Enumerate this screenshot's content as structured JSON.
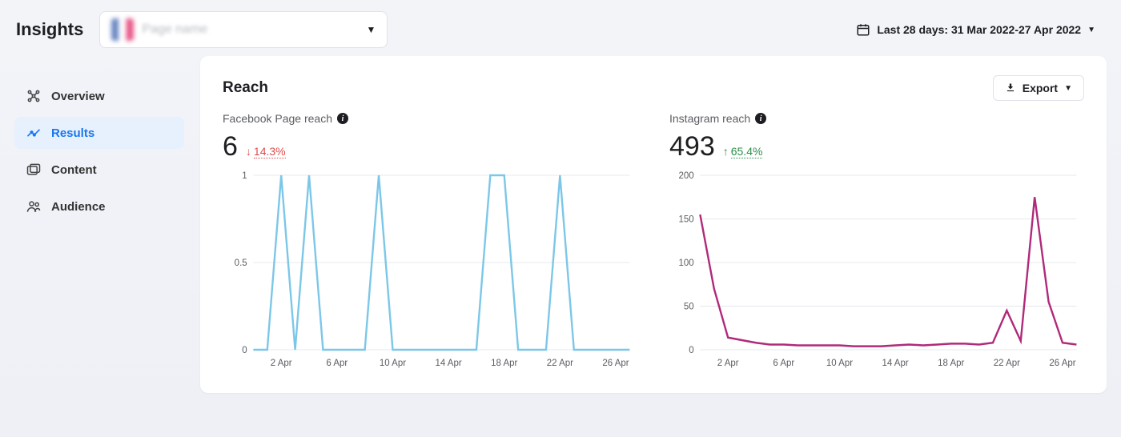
{
  "brand": "Insights",
  "page_selector": {
    "label": "Page name"
  },
  "date_range": {
    "label": "Last 28 days: 31 Mar 2022-27 Apr 2022"
  },
  "sidebar": {
    "items": [
      {
        "label": "Overview"
      },
      {
        "label": "Results"
      },
      {
        "label": "Content"
      },
      {
        "label": "Audience"
      }
    ],
    "active_index": 1
  },
  "panel": {
    "title": "Reach",
    "export_label": "Export"
  },
  "charts": {
    "facebook": {
      "type": "line",
      "title": "Facebook Page reach",
      "value": "6",
      "delta_pct": "14.3%",
      "delta_dir": "down",
      "line_color": "#7cc7e8",
      "grid_color": "#e6e8ec",
      "y_ticks": [
        0,
        0.5,
        1
      ],
      "ylim": [
        0,
        1
      ],
      "x_labels": [
        "2 Apr",
        "6 Apr",
        "10 Apr",
        "14 Apr",
        "18 Apr",
        "22 Apr",
        "26 Apr"
      ],
      "n_points": 28,
      "values": [
        0,
        0,
        1,
        0,
        1,
        0,
        0,
        0,
        0,
        1,
        0,
        0,
        0,
        0,
        0,
        0,
        0,
        1,
        1,
        0,
        0,
        0,
        1,
        0,
        0,
        0,
        0,
        0
      ]
    },
    "instagram": {
      "type": "line",
      "title": "Instagram reach",
      "value": "493",
      "delta_pct": "65.4%",
      "delta_dir": "up",
      "line_color": "#b02a7a",
      "grid_color": "#e6e8ec",
      "y_ticks": [
        0,
        50,
        100,
        150,
        200
      ],
      "ylim": [
        0,
        200
      ],
      "x_labels": [
        "2 Apr",
        "6 Apr",
        "10 Apr",
        "14 Apr",
        "18 Apr",
        "22 Apr",
        "26 Apr"
      ],
      "n_points": 28,
      "values": [
        155,
        70,
        14,
        11,
        8,
        6,
        6,
        5,
        5,
        5,
        5,
        4,
        4,
        4,
        5,
        6,
        5,
        6,
        7,
        7,
        6,
        8,
        45,
        10,
        175,
        55,
        8,
        6
      ]
    }
  }
}
